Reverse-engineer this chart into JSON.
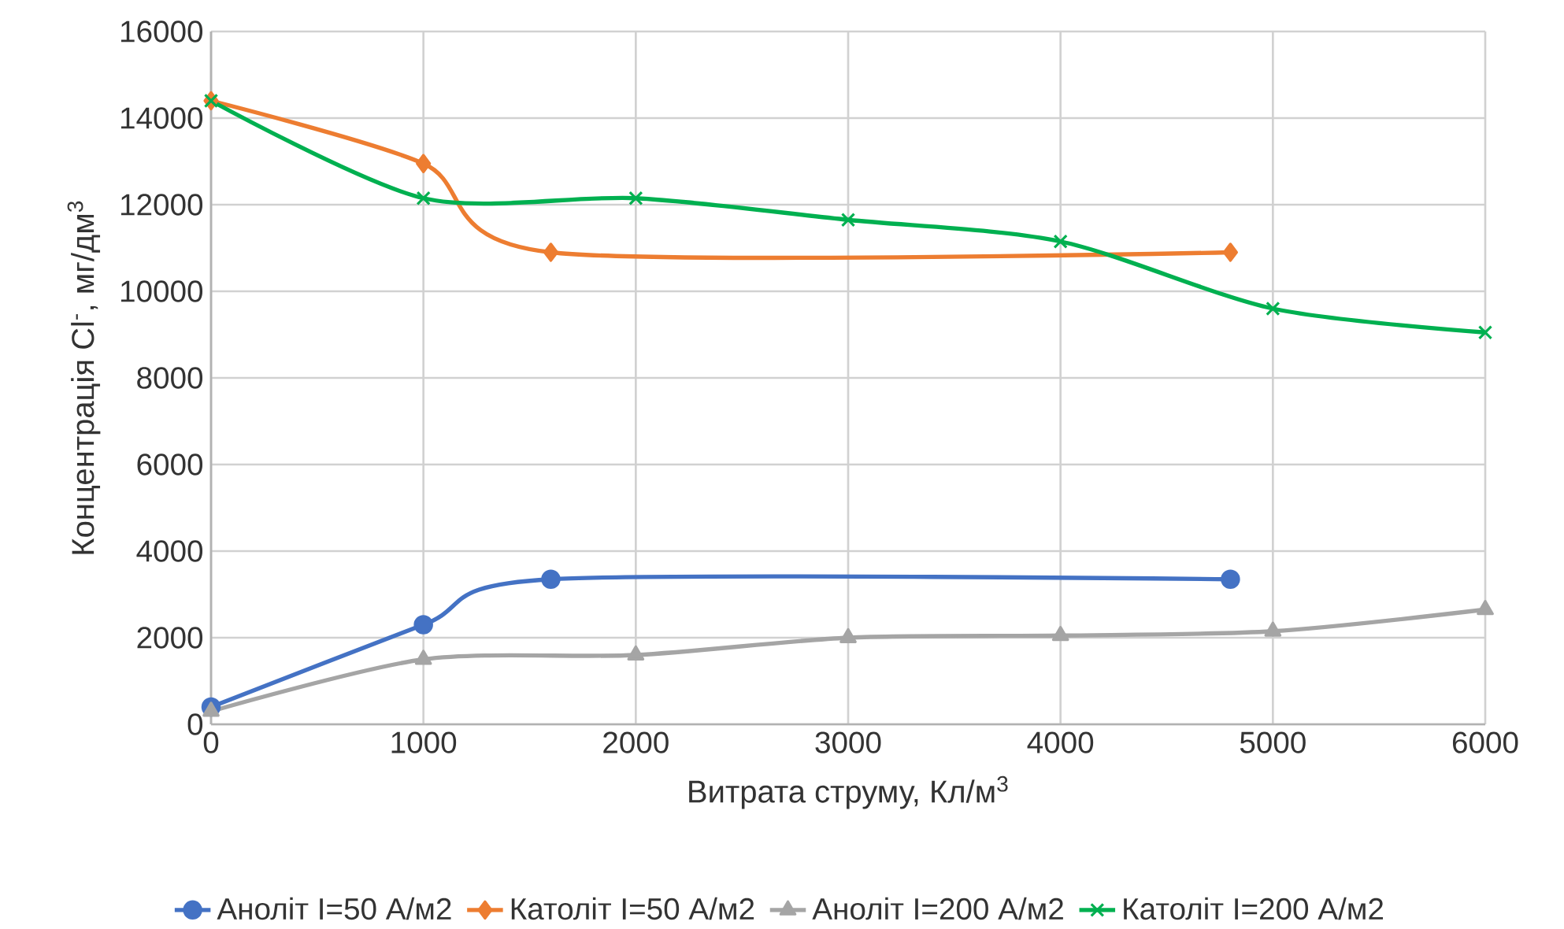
{
  "chart_data": {
    "type": "line",
    "xlabel": "Витрата струму, Кл/м$^{3}$",
    "ylabel": "Концентрація Cl$^{-}$, мг/дм$^{3}$",
    "xlim": [
      0,
      6000
    ],
    "ylim": [
      0,
      16000
    ],
    "xticks": [
      0,
      1000,
      2000,
      3000,
      4000,
      5000,
      6000
    ],
    "yticks": [
      0,
      2000,
      4000,
      6000,
      8000,
      10000,
      12000,
      14000,
      16000
    ],
    "grid": true,
    "legend": "bottom",
    "series": [
      {
        "name": "Аноліт I=50 А/м2",
        "color": "#4472c4",
        "marker": "circle",
        "x": [
          0,
          1000,
          1600,
          4800
        ],
        "values": [
          400,
          2300,
          3350,
          3350
        ]
      },
      {
        "name": "Католіт I=50 А/м2",
        "color": "#ed7d31",
        "marker": "diamond",
        "x": [
          0,
          1000,
          1600,
          4800
        ],
        "values": [
          14400,
          12950,
          10900,
          10900
        ]
      },
      {
        "name": "Аноліт I=200 А/м2",
        "color": "#a5a5a5",
        "marker": "triangle",
        "x": [
          0,
          1000,
          2000,
          3000,
          4000,
          5000,
          6000
        ],
        "values": [
          300,
          1500,
          1600,
          2000,
          2050,
          2150,
          2650
        ]
      },
      {
        "name": "Католіт I=200 А/м2",
        "color": "#00b050",
        "marker": "cross",
        "x": [
          0,
          1000,
          2000,
          3000,
          4000,
          5000,
          6000
        ],
        "values": [
          14400,
          12150,
          12150,
          11650,
          11150,
          9600,
          9050
        ]
      }
    ]
  }
}
